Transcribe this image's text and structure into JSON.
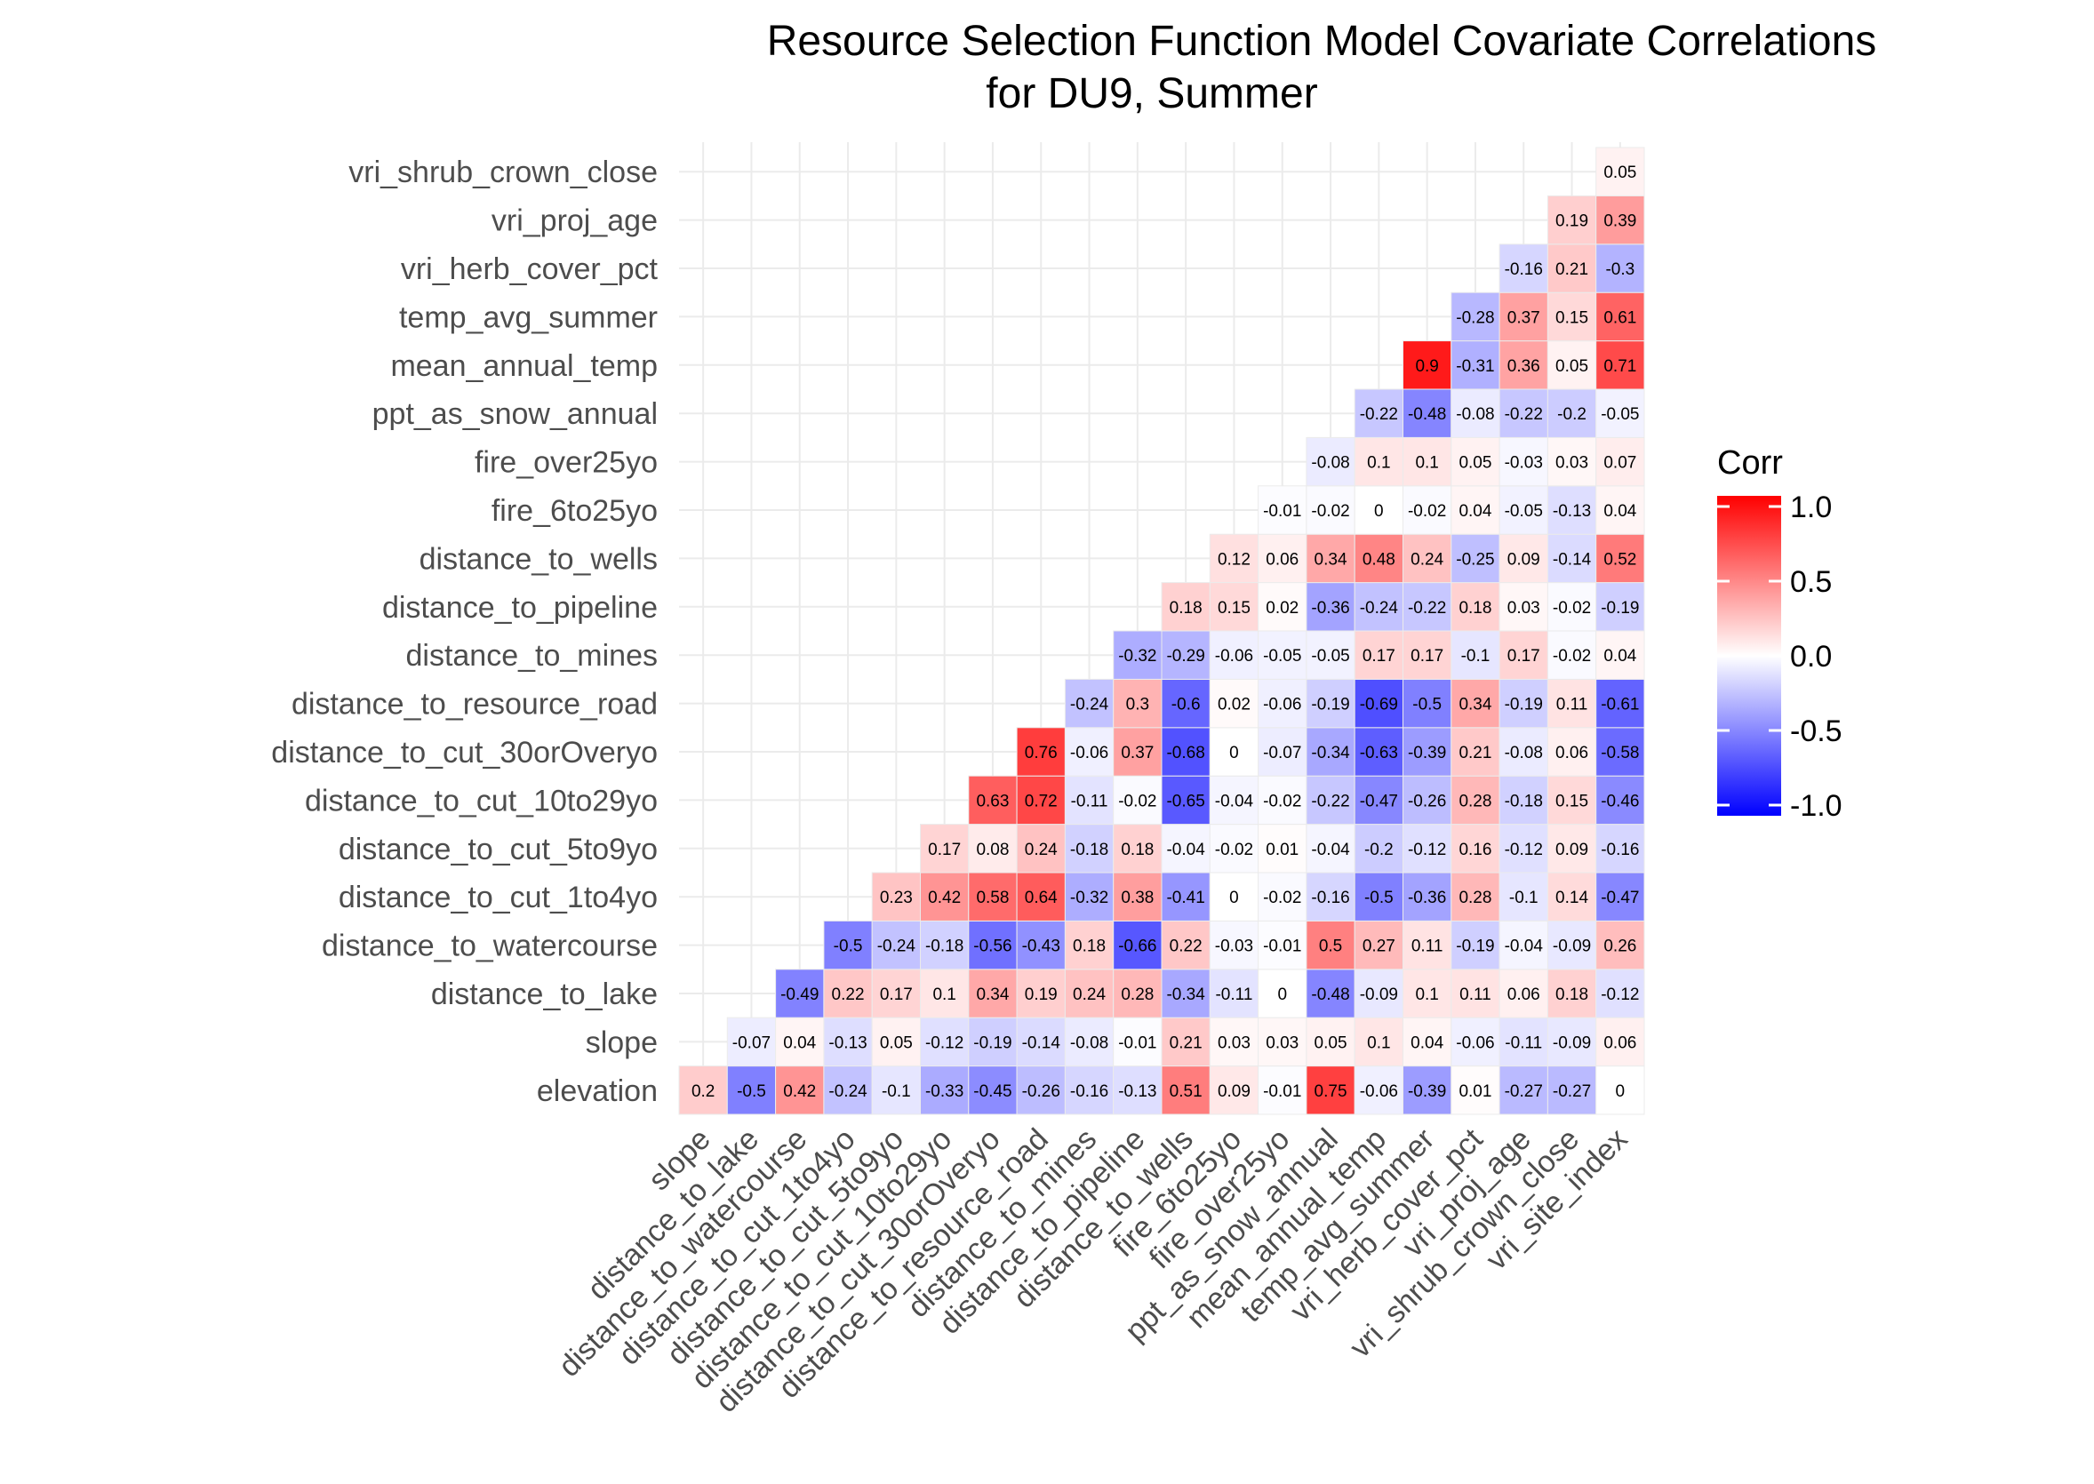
{
  "chart_data": {
    "type": "heatmap",
    "title_line1": "Resource Selection Function Model Covariate Correlations",
    "title_line2": "for DU9, Summer",
    "xlabel": "",
    "ylabel": "",
    "x_categories": [
      "slope",
      "distance_to_lake",
      "distance_to_watercourse",
      "distance_to_cut_1to4yo",
      "distance_to_cut_5to9yo",
      "distance_to_cut_10to29yo",
      "distance_to_cut_30orOveryo",
      "distance_to_resource_road",
      "distance_to_mines",
      "distance_to_pipeline",
      "distance_to_wells",
      "fire_6to25yo",
      "fire_over25yo",
      "ppt_as_snow_annual",
      "mean_annual_temp",
      "temp_avg_summer",
      "vri_herb_cover_pct",
      "vri_proj_age",
      "vri_shrub_crown_close",
      "vri_site_index"
    ],
    "y_categories": [
      "elevation",
      "slope",
      "distance_to_lake",
      "distance_to_watercourse",
      "distance_to_cut_1to4yo",
      "distance_to_cut_5to9yo",
      "distance_to_cut_10to29yo",
      "distance_to_cut_30orOveryo",
      "distance_to_resource_road",
      "distance_to_mines",
      "distance_to_pipeline",
      "distance_to_wells",
      "fire_6to25yo",
      "fire_over25yo",
      "ppt_as_snow_annual",
      "mean_annual_temp",
      "temp_avg_summer",
      "vri_herb_cover_pct",
      "vri_proj_age",
      "vri_shrub_crown_close"
    ],
    "rows": [
      {
        "y": "elevation",
        "values": [
          "0.2",
          "-0.5",
          "0.42",
          "-0.24",
          "-0.1",
          "-0.33",
          "-0.45",
          "-0.26",
          "-0.16",
          "-0.13",
          "0.51",
          "0.09",
          "-0.01",
          "0.75",
          "-0.06",
          "-0.39",
          "0.01",
          "-0.27",
          "-0.27",
          "0"
        ]
      },
      {
        "y": "slope",
        "values": [
          "-0.07",
          "0.04",
          "-0.13",
          "0.05",
          "-0.12",
          "-0.19",
          "-0.14",
          "-0.08",
          "-0.01",
          "0.21",
          "0.03",
          "0.03",
          "0.05",
          "0.1",
          "0.04",
          "-0.06",
          "-0.11",
          "-0.09",
          "0.06"
        ]
      },
      {
        "y": "distance_to_lake",
        "values": [
          "-0.49",
          "0.22",
          "0.17",
          "0.1",
          "0.34",
          "0.19",
          "0.24",
          "0.28",
          "-0.34",
          "-0.11",
          "0",
          "-0.48",
          "-0.09",
          "0.1",
          "0.11",
          "0.06",
          "0.18",
          "-0.12"
        ]
      },
      {
        "y": "distance_to_watercourse",
        "values": [
          "-0.5",
          "-0.24",
          "-0.18",
          "-0.56",
          "-0.43",
          "0.18",
          "-0.66",
          "0.22",
          "-0.03",
          "-0.01",
          "0.5",
          "0.27",
          "0.11",
          "-0.19",
          "-0.04",
          "-0.09",
          "0.26"
        ]
      },
      {
        "y": "distance_to_cut_1to4yo",
        "values": [
          "0.23",
          "0.42",
          "0.58",
          "0.64",
          "-0.32",
          "0.38",
          "-0.41",
          "0",
          "-0.02",
          "-0.16",
          "-0.5",
          "-0.36",
          "0.28",
          "-0.1",
          "0.14",
          "-0.47"
        ]
      },
      {
        "y": "distance_to_cut_5to9yo",
        "values": [
          "0.17",
          "0.08",
          "0.24",
          "-0.18",
          "0.18",
          "-0.04",
          "-0.02",
          "0.01",
          "-0.04",
          "-0.2",
          "-0.12",
          "0.16",
          "-0.12",
          "0.09",
          "-0.16"
        ]
      },
      {
        "y": "distance_to_cut_10to29yo",
        "values": [
          "0.63",
          "0.72",
          "-0.11",
          "-0.02",
          "-0.65",
          "-0.04",
          "-0.02",
          "-0.22",
          "-0.47",
          "-0.26",
          "0.28",
          "-0.18",
          "0.15",
          "-0.46"
        ]
      },
      {
        "y": "distance_to_cut_30orOveryo",
        "values": [
          "0.76",
          "-0.06",
          "0.37",
          "-0.68",
          "0",
          "-0.07",
          "-0.34",
          "-0.63",
          "-0.39",
          "0.21",
          "-0.08",
          "0.06",
          "-0.58"
        ]
      },
      {
        "y": "distance_to_resource_road",
        "values": [
          "-0.24",
          "0.3",
          "-0.6",
          "0.02",
          "-0.06",
          "-0.19",
          "-0.69",
          "-0.5",
          "0.34",
          "-0.19",
          "0.11",
          "-0.61"
        ]
      },
      {
        "y": "distance_to_mines",
        "values": [
          "-0.32",
          "-0.29",
          "-0.06",
          "-0.05",
          "-0.05",
          "0.17",
          "0.17",
          "-0.1",
          "0.17",
          "-0.02",
          "0.04"
        ]
      },
      {
        "y": "distance_to_pipeline",
        "values": [
          "0.18",
          "0.15",
          "0.02",
          "-0.36",
          "-0.24",
          "-0.22",
          "0.18",
          "0.03",
          "-0.02",
          "-0.19"
        ]
      },
      {
        "y": "distance_to_wells",
        "values": [
          "0.12",
          "0.06",
          "0.34",
          "0.48",
          "0.24",
          "-0.25",
          "0.09",
          "-0.14",
          "0.52"
        ]
      },
      {
        "y": "fire_6to25yo",
        "values": [
          "-0.01",
          "-0.02",
          "0",
          "-0.02",
          "0.04",
          "-0.05",
          "-0.13",
          "0.04"
        ]
      },
      {
        "y": "fire_over25yo",
        "values": [
          "-0.08",
          "0.1",
          "0.1",
          "0.05",
          "-0.03",
          "0.03",
          "0.07"
        ]
      },
      {
        "y": "ppt_as_snow_annual",
        "values": [
          "-0.22",
          "-0.48",
          "-0.08",
          "-0.22",
          "-0.2",
          "-0.05"
        ]
      },
      {
        "y": "mean_annual_temp",
        "values": [
          "0.9",
          "-0.31",
          "0.36",
          "0.05",
          "0.71"
        ]
      },
      {
        "y": "temp_avg_summer",
        "values": [
          "-0.28",
          "0.37",
          "0.15",
          "0.61"
        ]
      },
      {
        "y": "vri_herb_cover_pct",
        "values": [
          "-0.16",
          "0.21",
          "-0.3"
        ]
      },
      {
        "y": "vri_proj_age",
        "values": [
          "0.19",
          "0.39"
        ]
      },
      {
        "y": "vri_shrub_crown_close",
        "values": [
          "0.05"
        ]
      }
    ],
    "color_scale": {
      "low": "#0000ff",
      "mid": "#ffffff",
      "high": "#ff0000",
      "limits": [
        -1,
        1
      ]
    },
    "legend": {
      "title": "Corr",
      "ticks": [
        "1.0",
        "0.5",
        "0.0",
        "-0.5",
        "-1.0"
      ],
      "placement": "right"
    },
    "grid": true
  }
}
